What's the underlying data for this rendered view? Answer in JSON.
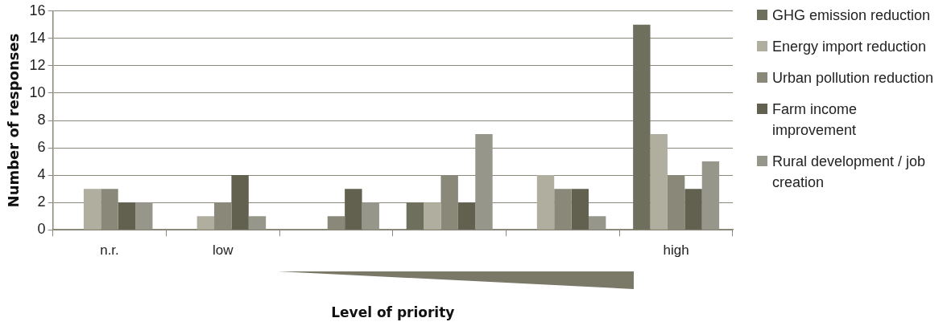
{
  "chart_data": {
    "type": "bar",
    "xlabel": "Level of priority",
    "ylabel": "Number of responses",
    "categories": [
      "n.r.",
      "low",
      null,
      null,
      null,
      "high"
    ],
    "series": [
      {
        "name": "GHG emission reduction",
        "color": "#6f6f5d",
        "values": [
          0,
          0,
          0,
          2,
          0,
          15
        ]
      },
      {
        "name": "Energy import reduction",
        "color": "#b0ae9e",
        "values": [
          3,
          1,
          0,
          2,
          4,
          7
        ]
      },
      {
        "name": "Urban pollution reduction",
        "color": "#8a8878",
        "values": [
          3,
          2,
          1,
          4,
          3,
          4
        ]
      },
      {
        "name": "Farm income improvement",
        "color": "#626150",
        "values": [
          2,
          4,
          3,
          2,
          3,
          3
        ]
      },
      {
        "name": "Rural development / job creation",
        "color": "#97968a",
        "values": [
          2,
          1,
          2,
          7,
          1,
          5
        ]
      }
    ],
    "ylim": [
      0,
      16
    ],
    "yticks": [
      0,
      2,
      4,
      6,
      8,
      10,
      12,
      14,
      16
    ],
    "grid": "y",
    "legend": "right"
  }
}
